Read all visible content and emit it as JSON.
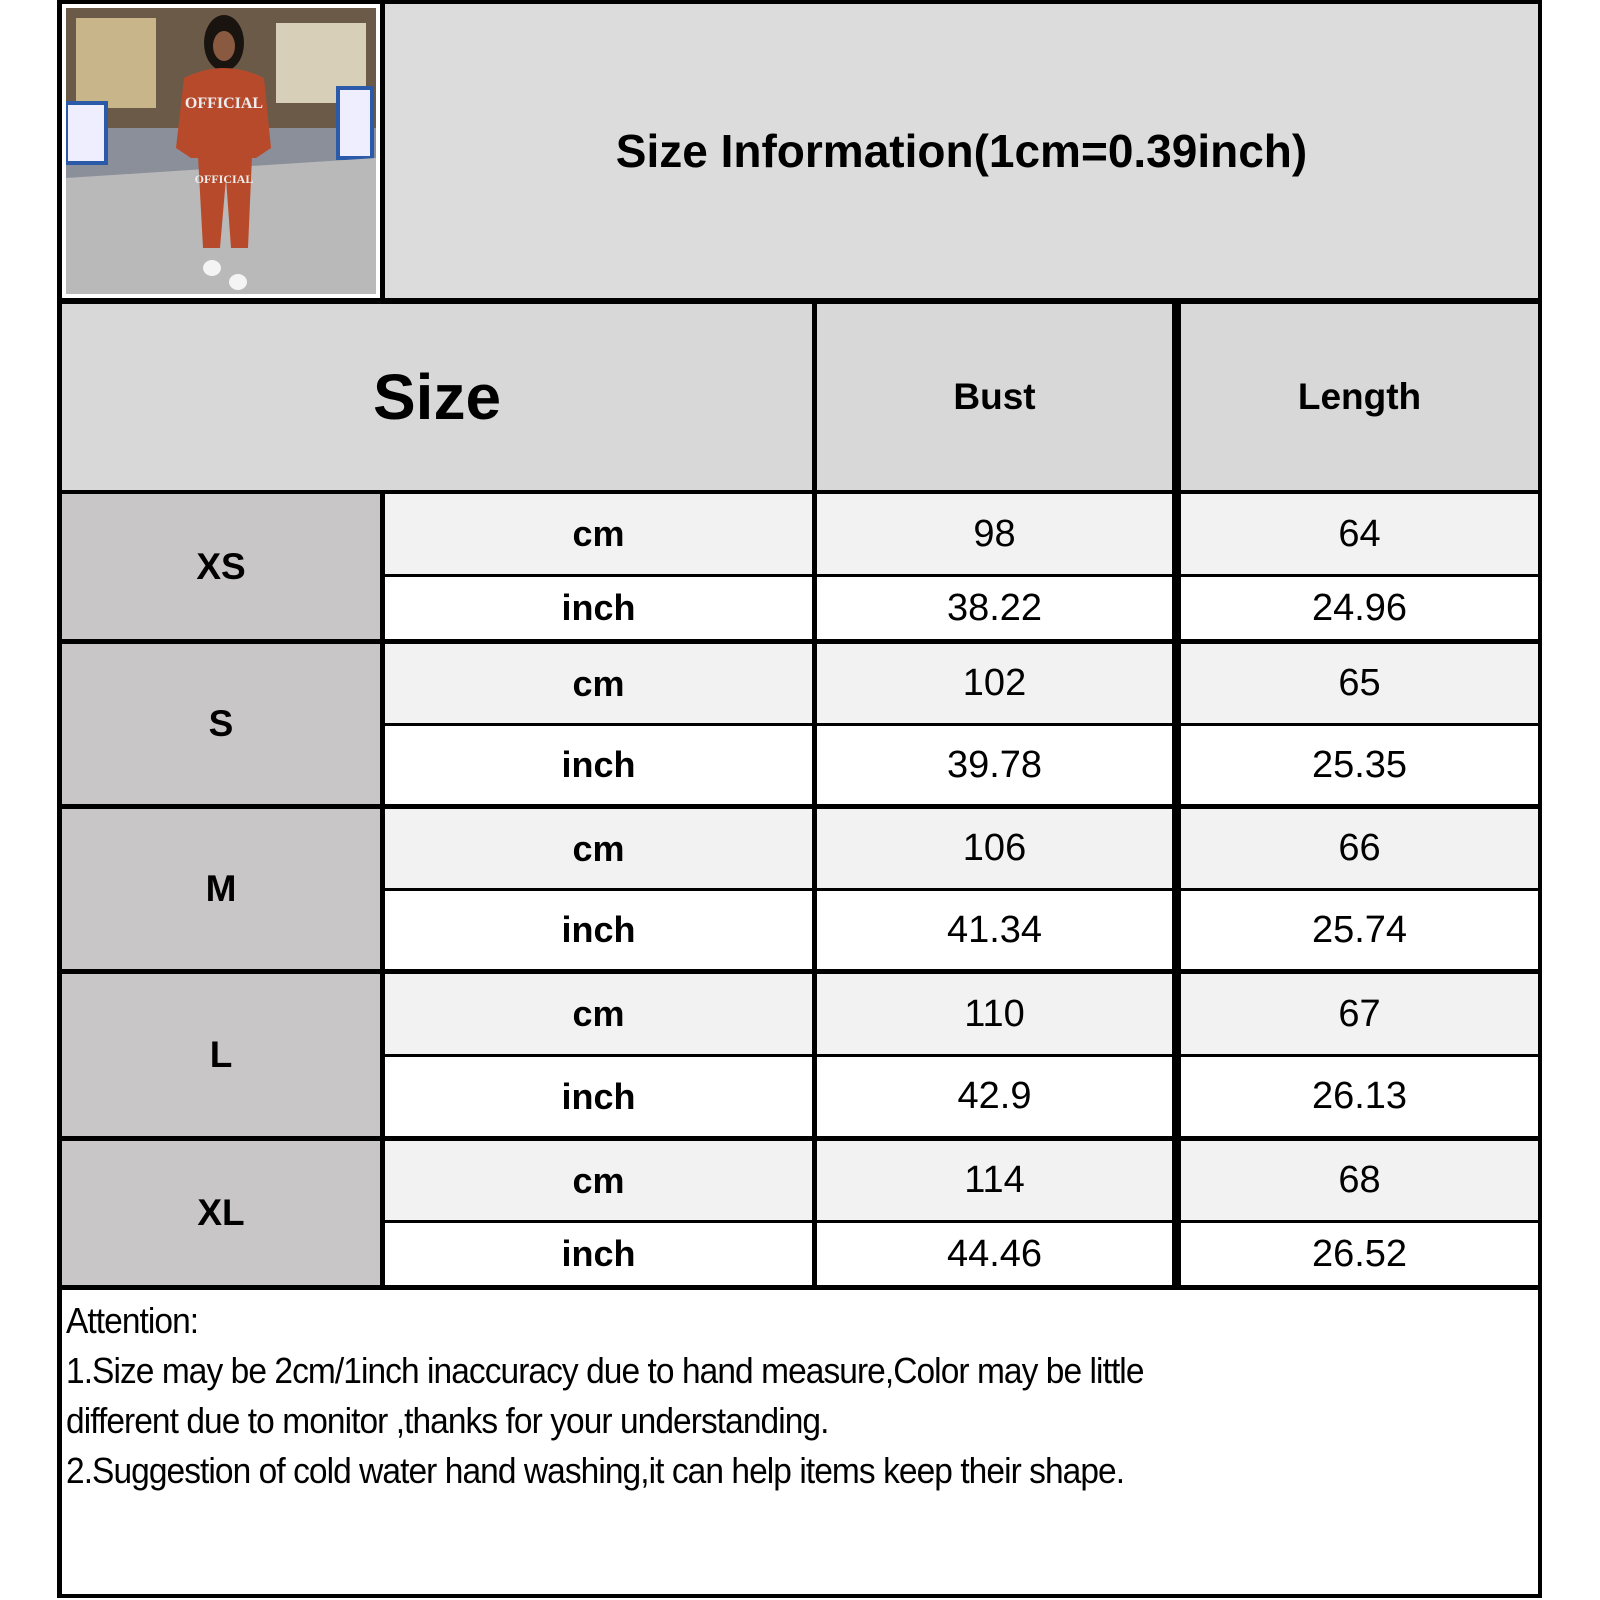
{
  "title": "Size Information(1cm=0.39inch)",
  "headers": {
    "size": "Size",
    "bust": "Bust",
    "length": "Length"
  },
  "units": {
    "cm": "cm",
    "inch": "inch"
  },
  "rows": [
    {
      "size": "XS",
      "cm": {
        "bust": "98",
        "length": "64"
      },
      "inch": {
        "bust": "38.22",
        "length": "24.96"
      }
    },
    {
      "size": "S",
      "cm": {
        "bust": "102",
        "length": "65"
      },
      "inch": {
        "bust": "39.78",
        "length": "25.35"
      }
    },
    {
      "size": "M",
      "cm": {
        "bust": "106",
        "length": "66"
      },
      "inch": {
        "bust": "41.34",
        "length": "25.74"
      }
    },
    {
      "size": "L",
      "cm": {
        "bust": "110",
        "length": "67"
      },
      "inch": {
        "bust": "42.9",
        "length": "26.13"
      }
    },
    {
      "size": "XL",
      "cm": {
        "bust": "114",
        "length": "68"
      },
      "inch": {
        "bust": "44.46",
        "length": "26.52"
      }
    }
  ],
  "notes": {
    "heading": "Attention:",
    "line1": "1.Size may be 2cm/1inch inaccuracy due to hand measure,Color may be little",
    "line2": "different due to monitor ,thanks for your understanding.",
    "line3": "2.Suggestion of cold water hand washing,it can help items keep their shape."
  },
  "colors": {
    "header_bg": "#d8d8d8",
    "size_bg": "#c8c6c6",
    "cm_bg": "#f2f2f2",
    "inch_bg": "#ffffff",
    "garment": "#b84a2c"
  }
}
